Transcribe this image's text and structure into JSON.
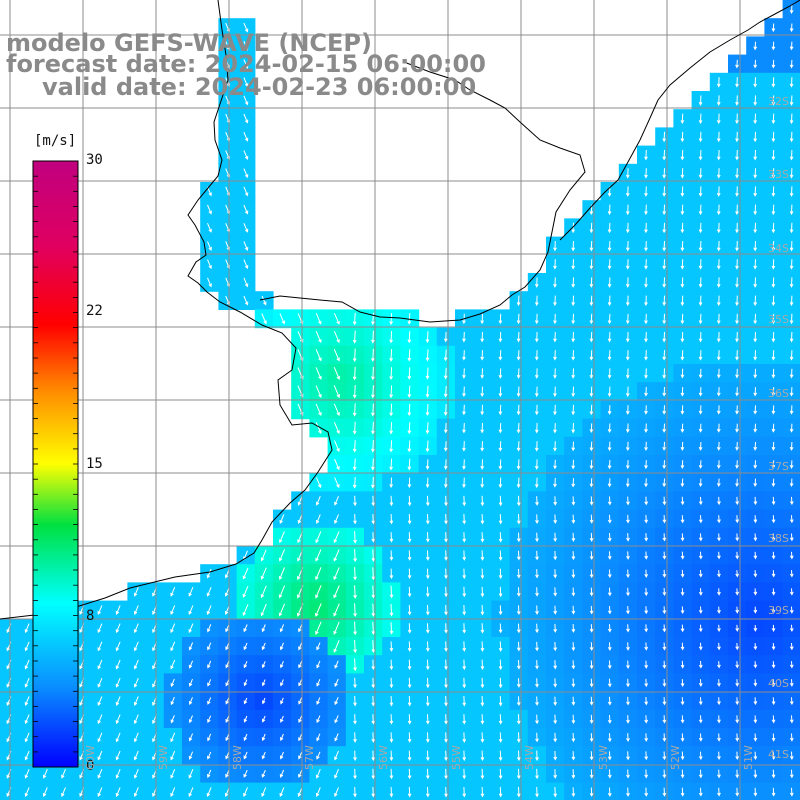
{
  "title": {
    "model": "modelo GEFS-WAVE (NCEP)",
    "forecast": "forecast date: 2024-02-15 06:00:00",
    "valid": "valid date: 2024-02-23 06:00:00"
  },
  "colorbar": {
    "unit": "[m/s]",
    "min": 0,
    "max": 30,
    "tick_labels": [
      "30",
      "22",
      "15",
      "8",
      "0"
    ],
    "tick_values": [
      30,
      22,
      15,
      8,
      0
    ]
  },
  "lat_labels": [
    "32S",
    "33S",
    "34S",
    "35S",
    "36S",
    "37S",
    "38S",
    "39S",
    "40S",
    "41S"
  ],
  "lon_labels": [
    "60W",
    "59W",
    "58W",
    "57W",
    "56W",
    "55W",
    "54W",
    "53W",
    "52W",
    "51W"
  ],
  "colors": {
    "land": "#ffffff",
    "grid": "#8c8c8c",
    "coast": "#000000",
    "arrow": "#ffffff",
    "title": "#8a8a8a"
  },
  "legend_placement": "left"
}
